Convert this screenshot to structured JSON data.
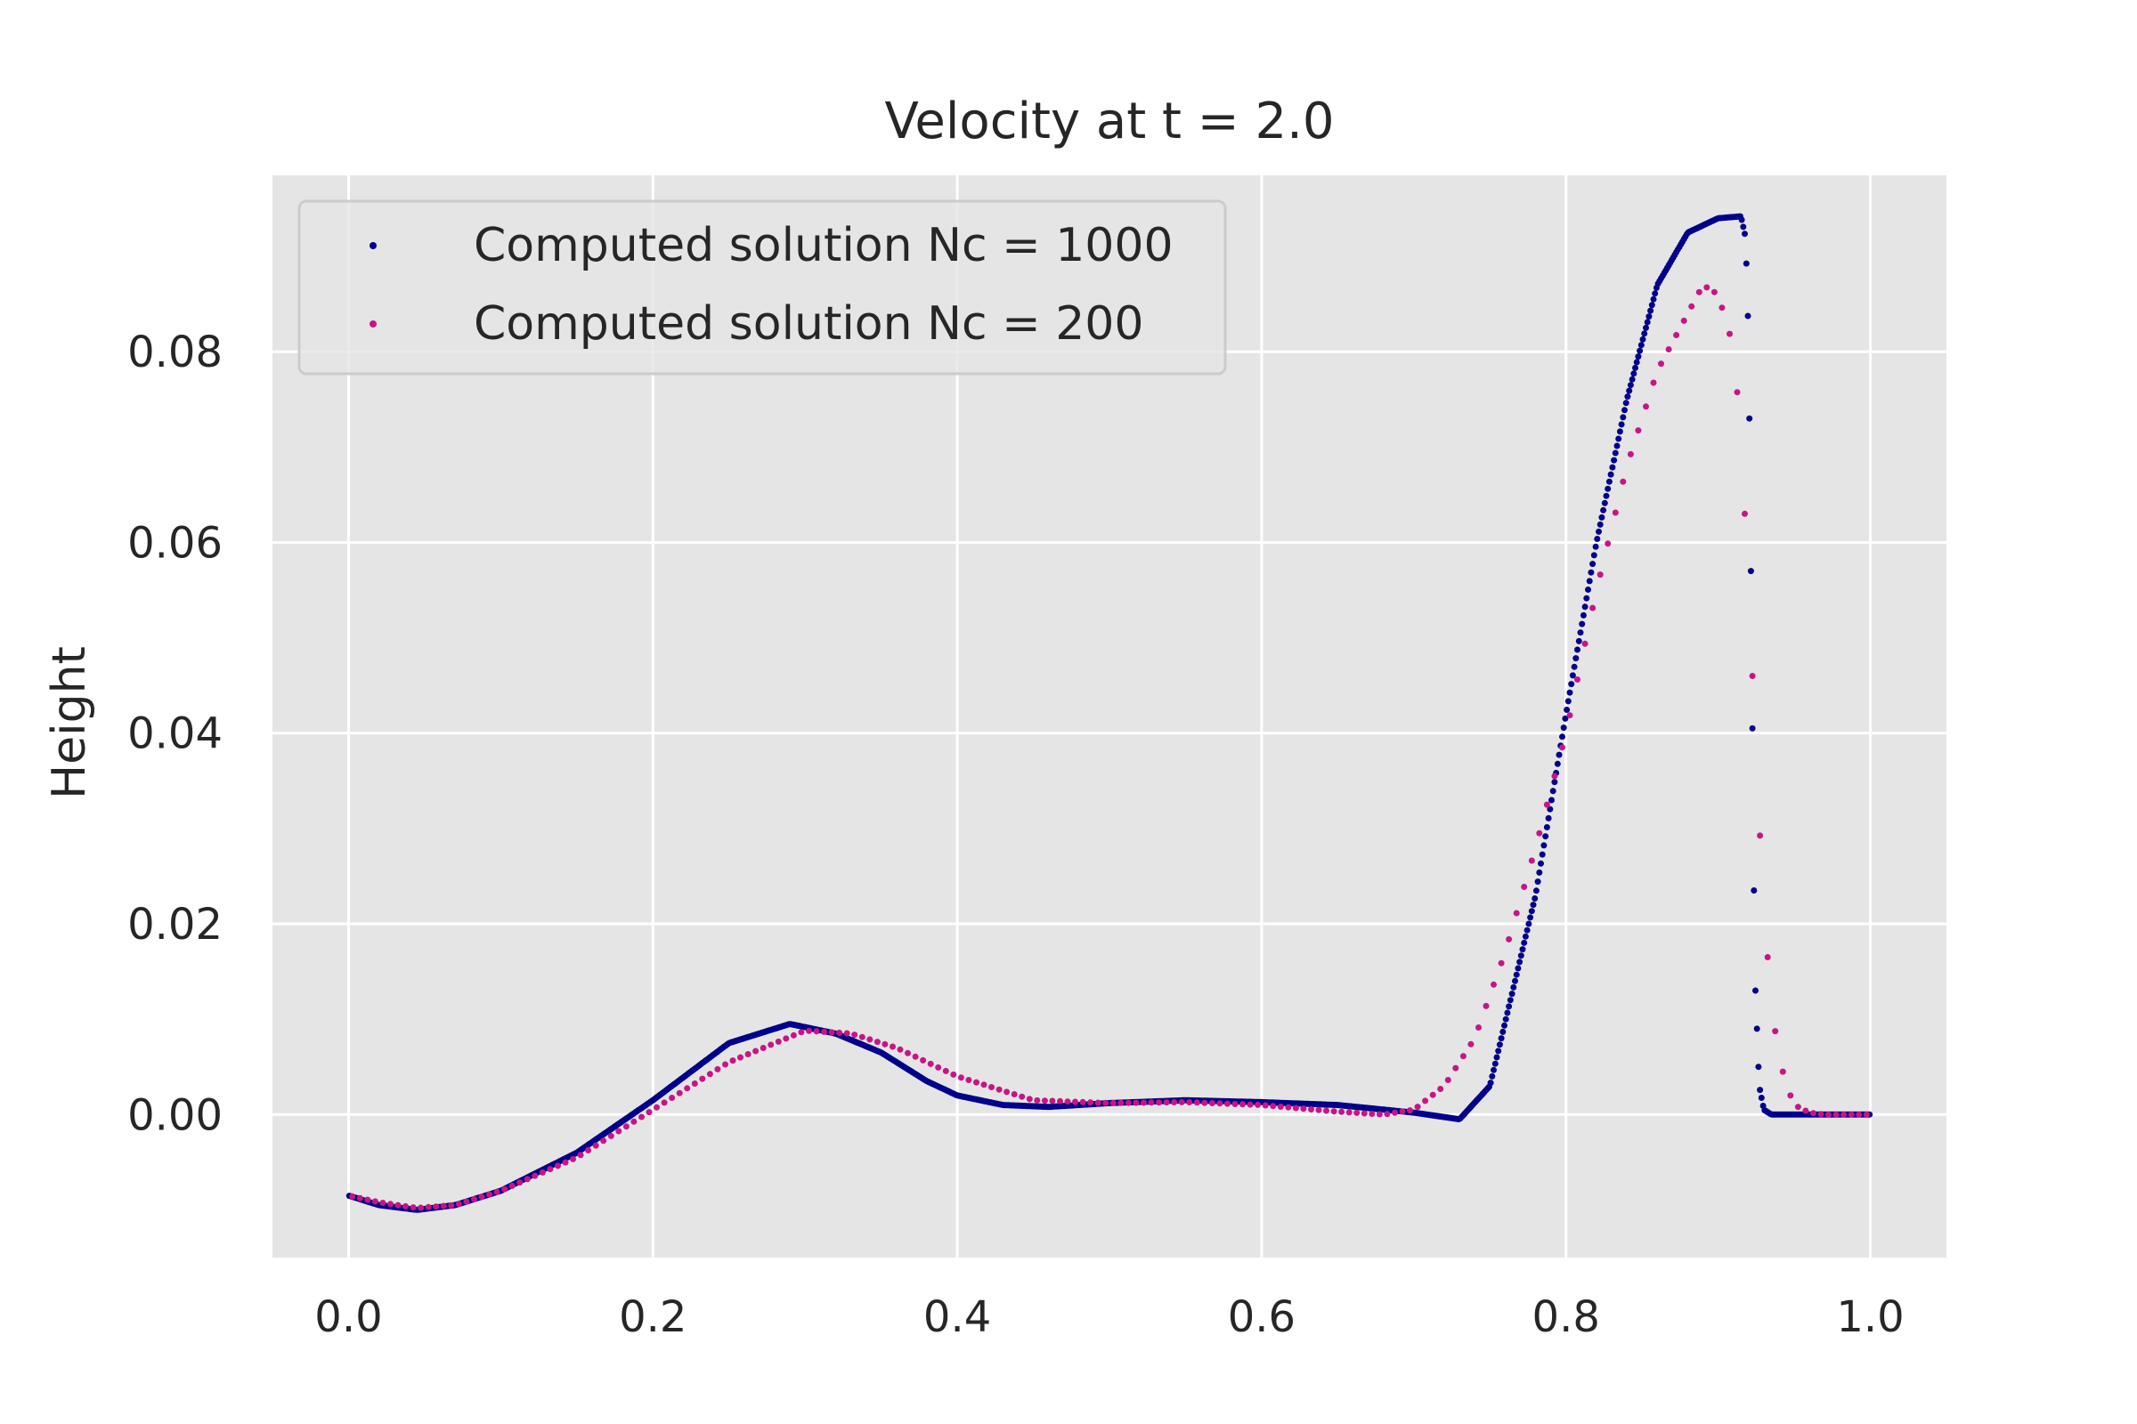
{
  "chart_data": {
    "type": "scatter",
    "title": "Velocity at t = 2.0",
    "xlabel": "",
    "ylabel": "Height",
    "xlim": [
      -0.05,
      1.05
    ],
    "ylim": [
      -0.015,
      0.0985
    ],
    "x_ticks": [
      0.0,
      0.2,
      0.4,
      0.6,
      0.8,
      1.0
    ],
    "x_tick_labels": [
      "0.0",
      "0.2",
      "0.4",
      "0.6",
      "0.8",
      "1.0"
    ],
    "y_ticks": [
      0.0,
      0.02,
      0.04,
      0.06,
      0.08
    ],
    "y_tick_labels": [
      "0.00",
      "0.02",
      "0.04",
      "0.06",
      "0.08"
    ],
    "grid": true,
    "legend_position": "top-left",
    "background_color": "#E5E5E5",
    "grid_color": "#FFFFFF",
    "series": [
      {
        "name": "Computed solution Nc = 1000",
        "color": "#00008B",
        "keypoints": [
          [
            0.0,
            -0.0085
          ],
          [
            0.02,
            -0.0095
          ],
          [
            0.045,
            -0.01
          ],
          [
            0.07,
            -0.0095
          ],
          [
            0.1,
            -0.008
          ],
          [
            0.15,
            -0.004
          ],
          [
            0.2,
            0.0015
          ],
          [
            0.25,
            0.0075
          ],
          [
            0.29,
            0.0095
          ],
          [
            0.32,
            0.0085
          ],
          [
            0.35,
            0.0065
          ],
          [
            0.38,
            0.0035
          ],
          [
            0.4,
            0.002
          ],
          [
            0.43,
            0.001
          ],
          [
            0.46,
            0.0008
          ],
          [
            0.5,
            0.0012
          ],
          [
            0.55,
            0.0015
          ],
          [
            0.6,
            0.0013
          ],
          [
            0.65,
            0.001
          ],
          [
            0.7,
            0.0002
          ],
          [
            0.73,
            -0.0005
          ],
          [
            0.75,
            0.003
          ],
          [
            0.78,
            0.023
          ],
          [
            0.8,
            0.042
          ],
          [
            0.82,
            0.06
          ],
          [
            0.84,
            0.075
          ],
          [
            0.86,
            0.087
          ],
          [
            0.88,
            0.0925
          ],
          [
            0.9,
            0.094
          ],
          [
            0.915,
            0.0942
          ],
          [
            0.918,
            0.092
          ],
          [
            0.92,
            0.081
          ],
          [
            0.922,
            0.049
          ],
          [
            0.924,
            0.015
          ],
          [
            0.927,
            0.003
          ],
          [
            0.93,
            0.0005
          ],
          [
            0.935,
            0.0
          ],
          [
            1.0,
            0.0
          ]
        ]
      },
      {
        "name": "Computed solution Nc = 200",
        "color": "#C71585",
        "keypoints": [
          [
            0.0,
            -0.0085
          ],
          [
            0.02,
            -0.0092
          ],
          [
            0.045,
            -0.0098
          ],
          [
            0.07,
            -0.0095
          ],
          [
            0.1,
            -0.008
          ],
          [
            0.15,
            -0.0045
          ],
          [
            0.2,
            0.0005
          ],
          [
            0.25,
            0.0055
          ],
          [
            0.3,
            0.0088
          ],
          [
            0.33,
            0.0085
          ],
          [
            0.36,
            0.007
          ],
          [
            0.4,
            0.004
          ],
          [
            0.45,
            0.0015
          ],
          [
            0.5,
            0.0012
          ],
          [
            0.55,
            0.0013
          ],
          [
            0.6,
            0.001
          ],
          [
            0.65,
            0.0003
          ],
          [
            0.68,
            0.0
          ],
          [
            0.7,
            0.0005
          ],
          [
            0.72,
            0.003
          ],
          [
            0.74,
            0.008
          ],
          [
            0.76,
            0.017
          ],
          [
            0.78,
            0.028
          ],
          [
            0.8,
            0.04
          ],
          [
            0.82,
            0.055
          ],
          [
            0.84,
            0.068
          ],
          [
            0.86,
            0.078
          ],
          [
            0.88,
            0.084
          ],
          [
            0.89,
            0.087
          ],
          [
            0.9,
            0.086
          ],
          [
            0.91,
            0.0805
          ],
          [
            0.915,
            0.071
          ],
          [
            0.92,
            0.055
          ],
          [
            0.925,
            0.037
          ],
          [
            0.93,
            0.0215
          ],
          [
            0.935,
            0.0115
          ],
          [
            0.94,
            0.006
          ],
          [
            0.945,
            0.003
          ],
          [
            0.95,
            0.001
          ],
          [
            0.96,
            0.0002
          ],
          [
            0.97,
            0.0
          ],
          [
            1.0,
            0.0
          ]
        ]
      }
    ]
  }
}
